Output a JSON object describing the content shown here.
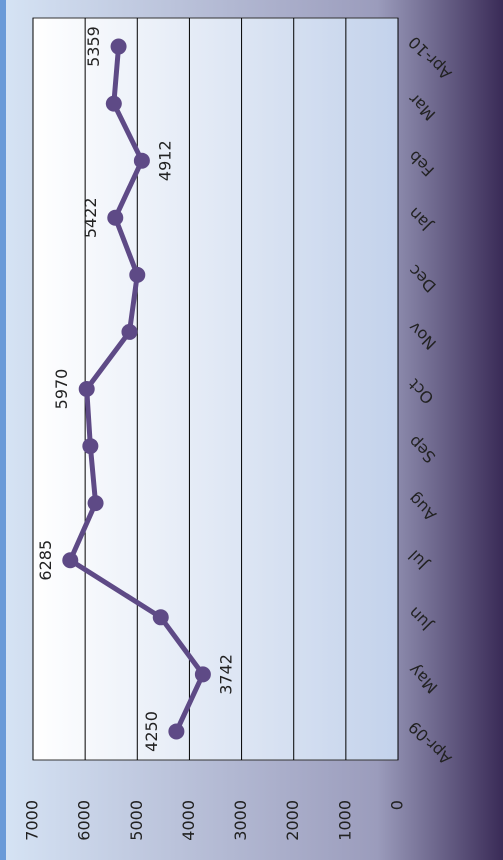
{
  "chart_data": {
    "type": "line",
    "categories": [
      "Apr-09",
      "May",
      "Jun",
      "Jul",
      "Aug",
      "Sep",
      "Oct",
      "Nov",
      "Dec",
      "Jan",
      "Feb",
      "Mar",
      "Apr-10"
    ],
    "series": [
      {
        "color": "#5e4a86",
        "values": [
          4250,
          3742,
          4550,
          6285,
          5800,
          5900,
          5970,
          5150,
          5000,
          5422,
          4912,
          5450,
          5359
        ],
        "value_labels": [
          "4250",
          "3742",
          null,
          "6285",
          null,
          null,
          "5970",
          null,
          null,
          "5422",
          "4912",
          null,
          "5359"
        ]
      }
    ],
    "ylim": [
      0,
      7000
    ],
    "yticks": [
      0,
      1000,
      2000,
      3000,
      4000,
      5000,
      6000,
      7000
    ],
    "grid": true
  }
}
